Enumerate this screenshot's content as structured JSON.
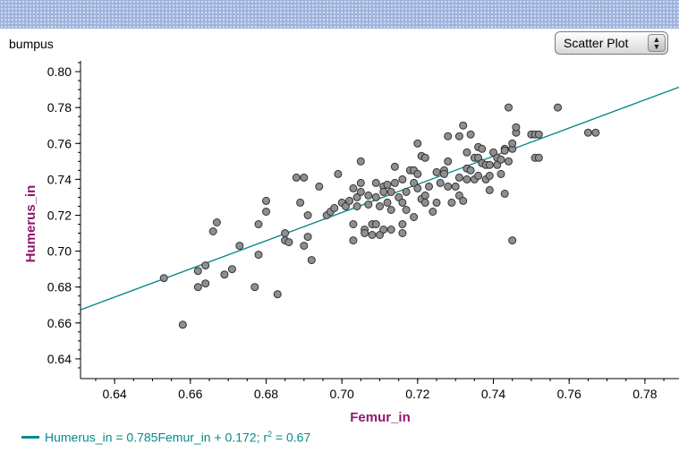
{
  "dataset_name": "bumpus",
  "plot_type": {
    "selected": "Scatter Plot",
    "icon": "stepper-arrows-icon"
  },
  "chart_data": {
    "type": "scatter",
    "xlabel": "Femur_in",
    "ylabel": "Humerus_in",
    "xlim": [
      0.631,
      0.789
    ],
    "ylim": [
      0.629,
      0.806
    ],
    "xticks": [
      "0.64",
      "0.66",
      "0.68",
      "0.70",
      "0.72",
      "0.74",
      "0.76",
      "0.78"
    ],
    "yticks": [
      "0.64",
      "0.66",
      "0.68",
      "0.70",
      "0.72",
      "0.74",
      "0.76",
      "0.78",
      "0.80"
    ],
    "colors": {
      "axis_label": "#8b1a6b",
      "fit_line": "#0a8a8a",
      "point_fill": "#8f8f8f",
      "point_stroke": "#333333"
    },
    "fit": {
      "slope": 0.785,
      "intercept": 0.172,
      "r2": 0.67
    },
    "points": [
      [
        0.653,
        0.685
      ],
      [
        0.658,
        0.659
      ],
      [
        0.662,
        0.68
      ],
      [
        0.662,
        0.689
      ],
      [
        0.664,
        0.682
      ],
      [
        0.664,
        0.692
      ],
      [
        0.666,
        0.711
      ],
      [
        0.667,
        0.716
      ],
      [
        0.669,
        0.687
      ],
      [
        0.671,
        0.69
      ],
      [
        0.673,
        0.703
      ],
      [
        0.677,
        0.68
      ],
      [
        0.678,
        0.698
      ],
      [
        0.678,
        0.715
      ],
      [
        0.68,
        0.722
      ],
      [
        0.68,
        0.728
      ],
      [
        0.683,
        0.676
      ],
      [
        0.685,
        0.71
      ],
      [
        0.685,
        0.706
      ],
      [
        0.686,
        0.705
      ],
      [
        0.688,
        0.741
      ],
      [
        0.69,
        0.741
      ],
      [
        0.689,
        0.727
      ],
      [
        0.69,
        0.703
      ],
      [
        0.691,
        0.708
      ],
      [
        0.691,
        0.72
      ],
      [
        0.692,
        0.695
      ],
      [
        0.694,
        0.736
      ],
      [
        0.696,
        0.72
      ],
      [
        0.697,
        0.722
      ],
      [
        0.699,
        0.743
      ],
      [
        0.698,
        0.724
      ],
      [
        0.7,
        0.727
      ],
      [
        0.701,
        0.725
      ],
      [
        0.702,
        0.728
      ],
      [
        0.703,
        0.706
      ],
      [
        0.703,
        0.715
      ],
      [
        0.703,
        0.735
      ],
      [
        0.704,
        0.73
      ],
      [
        0.704,
        0.725
      ],
      [
        0.705,
        0.75
      ],
      [
        0.705,
        0.738
      ],
      [
        0.705,
        0.733
      ],
      [
        0.706,
        0.712
      ],
      [
        0.706,
        0.71
      ],
      [
        0.707,
        0.731
      ],
      [
        0.707,
        0.726
      ],
      [
        0.708,
        0.715
      ],
      [
        0.708,
        0.709
      ],
      [
        0.709,
        0.738
      ],
      [
        0.709,
        0.73
      ],
      [
        0.709,
        0.715
      ],
      [
        0.71,
        0.725
      ],
      [
        0.71,
        0.709
      ],
      [
        0.711,
        0.736
      ],
      [
        0.711,
        0.733
      ],
      [
        0.711,
        0.712
      ],
      [
        0.712,
        0.737
      ],
      [
        0.712,
        0.727
      ],
      [
        0.713,
        0.733
      ],
      [
        0.713,
        0.723
      ],
      [
        0.713,
        0.712
      ],
      [
        0.714,
        0.747
      ],
      [
        0.714,
        0.738
      ],
      [
        0.715,
        0.73
      ],
      [
        0.716,
        0.727
      ],
      [
        0.716,
        0.74
      ],
      [
        0.716,
        0.71
      ],
      [
        0.716,
        0.715
      ],
      [
        0.717,
        0.723
      ],
      [
        0.717,
        0.733
      ],
      [
        0.718,
        0.745
      ],
      [
        0.719,
        0.745
      ],
      [
        0.719,
        0.738
      ],
      [
        0.719,
        0.719
      ],
      [
        0.72,
        0.735
      ],
      [
        0.72,
        0.743
      ],
      [
        0.72,
        0.76
      ],
      [
        0.721,
        0.753
      ],
      [
        0.721,
        0.729
      ],
      [
        0.722,
        0.731
      ],
      [
        0.722,
        0.727
      ],
      [
        0.722,
        0.752
      ],
      [
        0.723,
        0.736
      ],
      [
        0.724,
        0.722
      ],
      [
        0.725,
        0.744
      ],
      [
        0.725,
        0.727
      ],
      [
        0.726,
        0.738
      ],
      [
        0.727,
        0.745
      ],
      [
        0.727,
        0.743
      ],
      [
        0.728,
        0.736
      ],
      [
        0.728,
        0.764
      ],
      [
        0.728,
        0.75
      ],
      [
        0.729,
        0.727
      ],
      [
        0.73,
        0.736
      ],
      [
        0.731,
        0.741
      ],
      [
        0.731,
        0.764
      ],
      [
        0.731,
        0.731
      ],
      [
        0.732,
        0.77
      ],
      [
        0.732,
        0.728
      ],
      [
        0.733,
        0.746
      ],
      [
        0.733,
        0.74
      ],
      [
        0.733,
        0.755
      ],
      [
        0.734,
        0.765
      ],
      [
        0.734,
        0.745
      ],
      [
        0.735,
        0.74
      ],
      [
        0.735,
        0.752
      ],
      [
        0.736,
        0.752
      ],
      [
        0.736,
        0.758
      ],
      [
        0.736,
        0.742
      ],
      [
        0.737,
        0.749
      ],
      [
        0.737,
        0.757
      ],
      [
        0.738,
        0.748
      ],
      [
        0.738,
        0.74
      ],
      [
        0.739,
        0.748
      ],
      [
        0.739,
        0.734
      ],
      [
        0.739,
        0.742
      ],
      [
        0.74,
        0.755
      ],
      [
        0.741,
        0.752
      ],
      [
        0.741,
        0.748
      ],
      [
        0.742,
        0.751
      ],
      [
        0.742,
        0.743
      ],
      [
        0.743,
        0.757
      ],
      [
        0.743,
        0.756
      ],
      [
        0.743,
        0.732
      ],
      [
        0.744,
        0.78
      ],
      [
        0.744,
        0.75
      ],
      [
        0.745,
        0.757
      ],
      [
        0.745,
        0.706
      ],
      [
        0.745,
        0.76
      ],
      [
        0.746,
        0.766
      ],
      [
        0.746,
        0.769
      ],
      [
        0.75,
        0.765
      ],
      [
        0.751,
        0.765
      ],
      [
        0.751,
        0.752
      ],
      [
        0.752,
        0.765
      ],
      [
        0.752,
        0.752
      ],
      [
        0.757,
        0.78
      ],
      [
        0.765,
        0.766
      ],
      [
        0.767,
        0.766
      ]
    ]
  },
  "legend": {
    "equation": "Humerus_in = 0.785Femur_in + 0.172; r",
    "sup": "2",
    "tail": " = 0.67"
  }
}
